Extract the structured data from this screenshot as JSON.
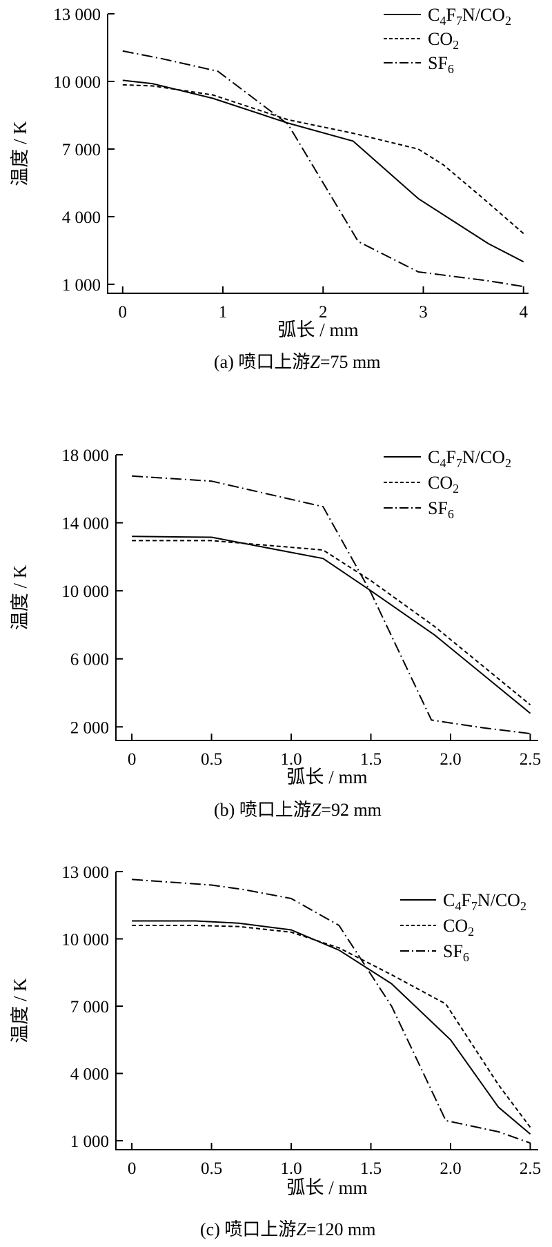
{
  "chart_data": [
    {
      "type": "line",
      "caption": "(a)  喷口上游Z=75 mm",
      "xlabel": "弧长 / mm",
      "ylabel": "温度 / K",
      "xlim": [
        -0.15,
        4.05
      ],
      "ylim": [
        600,
        13000
      ],
      "xticks": [
        0,
        1,
        2,
        3,
        4
      ],
      "xtick_labels": [
        "0",
        "1",
        "2",
        "3",
        "4"
      ],
      "yticks": [
        1000,
        4000,
        7000,
        10000,
        13000
      ],
      "ytick_labels": [
        "1 000",
        "4 000",
        "7 000",
        "10 000",
        "13 000"
      ],
      "legend_position": "top-right",
      "series": [
        {
          "name": "C4F7N/CO2",
          "style": "solid",
          "x": [
            0,
            0.3,
            0.9,
            1.65,
            2.3,
            2.95,
            3.3,
            3.65,
            4.0
          ],
          "y": [
            10050,
            9900,
            9250,
            8150,
            7350,
            4800,
            3800,
            2800,
            2000
          ]
        },
        {
          "name": "CO2",
          "style": "dashed",
          "x": [
            0,
            0.3,
            0.9,
            1.65,
            2.3,
            2.95,
            3.2,
            3.6,
            4.0
          ],
          "y": [
            9850,
            9800,
            9400,
            8300,
            7700,
            7000,
            6300,
            4800,
            3250
          ]
        },
        {
          "name": "SF6",
          "style": "dashdot",
          "x": [
            0,
            0.4,
            0.95,
            1.65,
            2.35,
            2.95,
            3.3,
            3.65,
            4.0
          ],
          "y": [
            11350,
            11000,
            10450,
            8100,
            2900,
            1550,
            1350,
            1150,
            900
          ]
        }
      ]
    },
    {
      "type": "line",
      "caption": "(b)  喷口上游Z=92 mm",
      "xlabel": "弧长 / mm",
      "ylabel": "温度 / K",
      "xlim": [
        -0.1,
        2.55
      ],
      "ylim": [
        1200,
        18000
      ],
      "xticks": [
        0,
        0.5,
        1.0,
        1.5,
        2.0,
        2.5
      ],
      "xtick_labels": [
        "0",
        "0.5",
        "1.0",
        "1.5",
        "2.0",
        "2.5"
      ],
      "yticks": [
        2000,
        6000,
        10000,
        14000,
        18000
      ],
      "ytick_labels": [
        "2 000",
        "6 000",
        "10 000",
        "14 000",
        "18 000"
      ],
      "legend_position": "top-right",
      "series": [
        {
          "name": "C4F7N/CO2",
          "style": "solid",
          "x": [
            0,
            0.5,
            1.2,
            1.5,
            1.9,
            2.2,
            2.5
          ],
          "y": [
            13200,
            13150,
            11900,
            10000,
            7400,
            5100,
            2800
          ]
        },
        {
          "name": "CO2",
          "style": "dashed",
          "x": [
            0,
            0.5,
            1.2,
            1.5,
            1.9,
            2.2,
            2.5
          ],
          "y": [
            12950,
            12950,
            12400,
            10600,
            7900,
            5600,
            3300
          ]
        },
        {
          "name": "SF6",
          "style": "dashdot",
          "x": [
            0,
            0.5,
            1.2,
            1.5,
            1.88,
            2.2,
            2.5
          ],
          "y": [
            16750,
            16450,
            14950,
            9900,
            2400,
            1950,
            1600
          ]
        }
      ]
    },
    {
      "type": "line",
      "caption": "(c)  喷口上游Z=120 mm",
      "xlabel": "弧长 / mm",
      "ylabel": "温度 / K",
      "xlim": [
        -0.1,
        2.55
      ],
      "ylim": [
        600,
        13000
      ],
      "xticks": [
        0,
        0.5,
        1.0,
        1.5,
        2.0,
        2.5
      ],
      "xtick_labels": [
        "0",
        "0.5",
        "1.0",
        "1.5",
        "2.0",
        "2.5"
      ],
      "yticks": [
        1000,
        4000,
        7000,
        10000,
        13000
      ],
      "ytick_labels": [
        "1 000",
        "4 000",
        "7 000",
        "10 000",
        "13 000"
      ],
      "legend_position": "top-right",
      "series": [
        {
          "name": "C4F7N/CO2",
          "style": "solid",
          "x": [
            0,
            0.4,
            0.67,
            1.0,
            1.3,
            1.63,
            2.0,
            2.3,
            2.5
          ],
          "y": [
            10800,
            10800,
            10700,
            10400,
            9500,
            8000,
            5500,
            2500,
            1300
          ]
        },
        {
          "name": "CO2",
          "style": "dashed",
          "x": [
            0,
            0.4,
            0.67,
            1.0,
            1.3,
            1.63,
            1.97,
            2.3,
            2.5
          ],
          "y": [
            10600,
            10600,
            10550,
            10300,
            9600,
            8400,
            7100,
            3500,
            1600
          ]
        },
        {
          "name": "SF6",
          "style": "dashdot",
          "x": [
            0,
            0.5,
            0.7,
            1.0,
            1.3,
            1.63,
            1.97,
            2.3,
            2.5
          ],
          "y": [
            12650,
            12400,
            12200,
            11800,
            10600,
            7000,
            1900,
            1400,
            900
          ]
        }
      ]
    }
  ]
}
